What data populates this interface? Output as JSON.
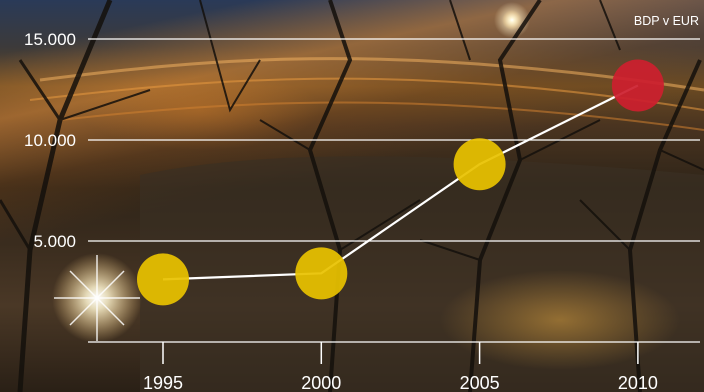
{
  "chart_data": {
    "type": "line",
    "unit_label": "BDP v EUR",
    "categories": [
      "1995",
      "2000",
      "2005",
      "2010"
    ],
    "values": [
      3100,
      3400,
      8800,
      12700
    ],
    "point_colors": [
      "#e8c200",
      "#e8c200",
      "#e8c200",
      "#cc1f2e"
    ],
    "ylim": [
      0,
      15000
    ],
    "yticks": [
      {
        "value": 5000,
        "label": "5.000"
      },
      {
        "value": 10000,
        "label": "10.000"
      },
      {
        "value": 15000,
        "label": "15.000"
      }
    ],
    "grid": true,
    "line_color": "#ffffff"
  }
}
